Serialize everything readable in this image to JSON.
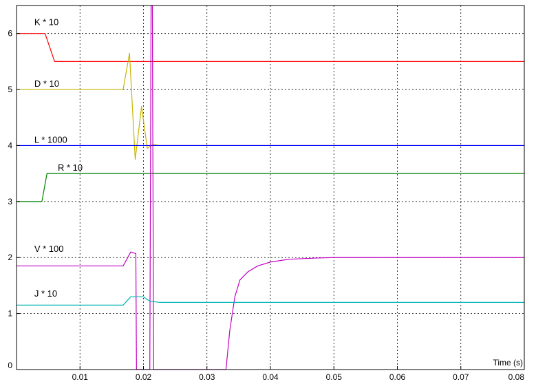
{
  "chart_data": {
    "type": "line",
    "title": "",
    "xlabel": "Time (s)",
    "ylabel": "",
    "xlim": [
      0,
      0.08
    ],
    "ylim": [
      0,
      6.5
    ],
    "grid": true,
    "x_ticks": [
      0.01,
      0.02,
      0.03,
      0.04,
      0.05,
      0.06,
      0.07,
      0.08
    ],
    "x_tick_labels": [
      "0.01",
      "0.02",
      "0.03",
      "0.04",
      "0.05",
      "0.06",
      "0.07",
      "0.08"
    ],
    "y_ticks": [
      0,
      1,
      2,
      3,
      4,
      5,
      6
    ],
    "y_tick_labels": [
      "0",
      "1",
      "2",
      "3",
      "4",
      "5",
      "6"
    ],
    "series": [
      {
        "name": "K * 10",
        "color": "#ff0000",
        "label_at": [
          0.0028,
          6.15
        ],
        "points": [
          [
            0,
            6.0
          ],
          [
            0.0045,
            6.0
          ],
          [
            0.006,
            5.5
          ],
          [
            0.08,
            5.5
          ]
        ]
      },
      {
        "name": "D * 10",
        "color": "#c8b400",
        "label_at": [
          0.0028,
          5.05
        ],
        "points": [
          [
            0,
            5.0
          ],
          [
            0.0168,
            5.0
          ],
          [
            0.0178,
            5.65
          ],
          [
            0.0187,
            3.75
          ],
          [
            0.0197,
            4.7
          ],
          [
            0.0206,
            3.95
          ],
          [
            0.0215,
            4.02
          ],
          [
            0.0225,
            4.0
          ],
          [
            0.08,
            4.0
          ]
        ]
      },
      {
        "name": "L * 1000",
        "color": "#0000ff",
        "label_at": [
          0.0028,
          4.05
        ],
        "points": [
          [
            0,
            4.0
          ],
          [
            0.021,
            4.0
          ],
          [
            0.08,
            4.0
          ]
        ]
      },
      {
        "name": "R * 10",
        "color": "#008000",
        "label_at": [
          0.0065,
          3.55
        ],
        "points": [
          [
            0,
            3.0
          ],
          [
            0.004,
            3.0
          ],
          [
            0.0048,
            3.5
          ],
          [
            0.08,
            3.5
          ]
        ]
      },
      {
        "name": "V * 100",
        "color": "#c000c0",
        "label_at": [
          0.0028,
          2.1
        ],
        "points": [
          [
            0,
            1.85
          ],
          [
            0.0168,
            1.85
          ],
          [
            0.018,
            2.1
          ],
          [
            0.0188,
            2.07
          ],
          [
            0.0189,
            0
          ],
          [
            0.0189,
            0
          ],
          [
            0.021,
            0
          ],
          [
            0.0212,
            6.5
          ],
          [
            0.0214,
            6.5
          ],
          [
            0.0216,
            0
          ],
          [
            0.033,
            0
          ],
          [
            0.0336,
            0.7
          ],
          [
            0.0344,
            1.3
          ],
          [
            0.0352,
            1.6
          ],
          [
            0.0365,
            1.75
          ],
          [
            0.038,
            1.85
          ],
          [
            0.04,
            1.92
          ],
          [
            0.043,
            1.97
          ],
          [
            0.047,
            1.99
          ],
          [
            0.05,
            2.0
          ],
          [
            0.08,
            2.0
          ]
        ]
      },
      {
        "name": "J * 10",
        "color": "#00b4b4",
        "label_at": [
          0.0028,
          1.3
        ],
        "points": [
          [
            0,
            1.15
          ],
          [
            0.0168,
            1.15
          ],
          [
            0.018,
            1.3
          ],
          [
            0.02,
            1.3
          ],
          [
            0.021,
            1.22
          ],
          [
            0.0225,
            1.2
          ],
          [
            0.08,
            1.2
          ]
        ]
      }
    ]
  }
}
